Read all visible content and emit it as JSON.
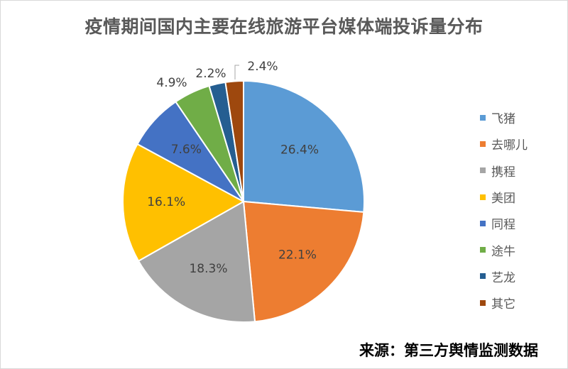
{
  "title": "疫情期间国内主要在线旅游平台媒体端投诉量分布",
  "source": "来源：第三方舆情监测数据",
  "chart_data": {
    "type": "pie",
    "title": "疫情期间国内主要在线旅游平台媒体端投诉量分布",
    "categories": [
      "飞猪",
      "去哪儿",
      "携程",
      "美团",
      "同程",
      "途牛",
      "艺龙",
      "其它"
    ],
    "values": [
      26.4,
      22.1,
      18.3,
      16.1,
      7.6,
      4.9,
      2.2,
      2.4
    ],
    "labels": [
      "26.4%",
      "22.1%",
      "18.3%",
      "16.1%",
      "7.6%",
      "4.9%",
      "2.2%",
      "2.4%"
    ],
    "colors": [
      "#5B9BD5",
      "#ED7D31",
      "#A5A5A5",
      "#FFC000",
      "#4472C4",
      "#70AD47",
      "#255E91",
      "#9E480E"
    ],
    "legend_position": "right"
  }
}
